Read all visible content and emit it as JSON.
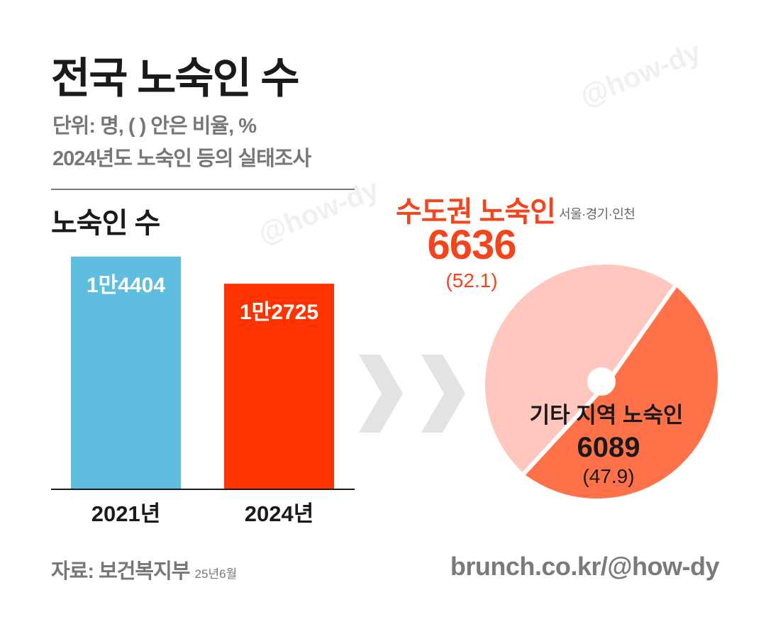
{
  "title": "전국 노숙인 수",
  "subtitle1": "단위: 명, ( ) 안은 비율, %",
  "subtitle2": "2024년도 노숙인 등의 실태조사",
  "section_title": "노숙인 수",
  "watermark": "@how-dy",
  "source": {
    "label": "자료: 보건복지부",
    "date": "25년6월"
  },
  "credit": "brunch.co.kr/@how-dy",
  "colors": {
    "bar2021": "#5fbde0",
    "bar2024": "#ff3300",
    "metro": "#ff7148",
    "other": "#ffc7bd",
    "metro_text": "#f4441c",
    "arrow": "#e3e3e3"
  },
  "chart_data": [
    {
      "type": "bar",
      "title": "노숙인 수",
      "categories": [
        "2021년",
        "2024년"
      ],
      "values": [
        14404,
        12725
      ],
      "value_labels": [
        "1만4404",
        "1만2725"
      ],
      "ylim": [
        0,
        15800
      ]
    },
    {
      "type": "pie",
      "slices": [
        {
          "name": "수도권 노숙인",
          "note": "서울·경기·인천",
          "value": 6636,
          "value_label": "6636",
          "percent": 52.1,
          "percent_label": "(52.1)"
        },
        {
          "name": "기타 지역 노숙인",
          "value": 6089,
          "value_label": "6089",
          "percent": 47.9,
          "percent_label": "(47.9)"
        }
      ]
    }
  ]
}
